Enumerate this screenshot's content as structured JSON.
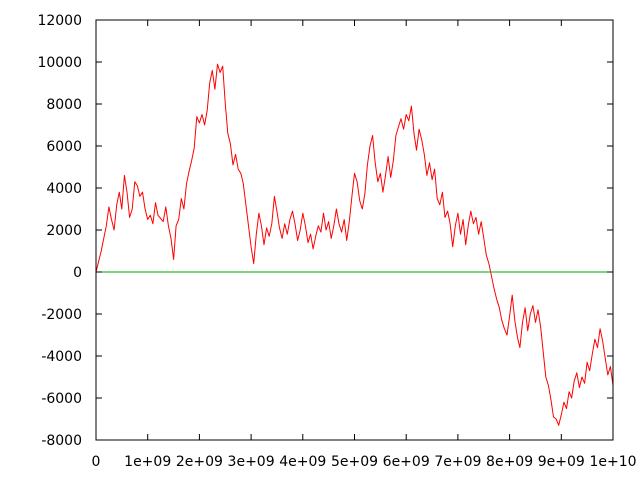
{
  "chart_data": {
    "type": "line",
    "title": "",
    "xlabel": "",
    "ylabel": "",
    "xlim": [
      0,
      10000000000
    ],
    "ylim": [
      -8000,
      12000
    ],
    "x_ticks": [
      {
        "value": 0,
        "label": "0"
      },
      {
        "value": 1000000000,
        "label": "1e+09"
      },
      {
        "value": 2000000000,
        "label": "2e+09"
      },
      {
        "value": 3000000000,
        "label": "3e+09"
      },
      {
        "value": 4000000000,
        "label": "4e+09"
      },
      {
        "value": 5000000000,
        "label": "5e+09"
      },
      {
        "value": 6000000000,
        "label": "6e+09"
      },
      {
        "value": 7000000000,
        "label": "7e+09"
      },
      {
        "value": 8000000000,
        "label": "8e+09"
      },
      {
        "value": 9000000000,
        "label": "9e+09"
      },
      {
        "value": 10000000000,
        "label": "1e+10"
      }
    ],
    "y_ticks": [
      {
        "value": 12000,
        "label": "12000"
      },
      {
        "value": 10000,
        "label": "10000"
      },
      {
        "value": 8000,
        "label": "8000"
      },
      {
        "value": 6000,
        "label": "6000"
      },
      {
        "value": 4000,
        "label": "4000"
      },
      {
        "value": 2000,
        "label": "2000"
      },
      {
        "value": 0,
        "label": "0"
      },
      {
        "value": -2000,
        "label": "-2000"
      },
      {
        "value": -4000,
        "label": "-4000"
      },
      {
        "value": -6000,
        "label": "-6000"
      },
      {
        "value": -8000,
        "label": "-8000"
      }
    ],
    "grid": false,
    "legend": "none",
    "series": [
      {
        "color": "#ff0000",
        "points": [
          [
            0,
            0
          ],
          [
            50000000,
            500
          ],
          [
            100000000,
            1000
          ],
          [
            200000000,
            2200
          ],
          [
            250000000,
            3100
          ],
          [
            300000000,
            2500
          ],
          [
            350000000,
            2000
          ],
          [
            400000000,
            3200
          ],
          [
            450000000,
            3800
          ],
          [
            500000000,
            3000
          ],
          [
            550000000,
            4600
          ],
          [
            600000000,
            3800
          ],
          [
            650000000,
            2600
          ],
          [
            700000000,
            3000
          ],
          [
            750000000,
            4300
          ],
          [
            800000000,
            4100
          ],
          [
            850000000,
            3600
          ],
          [
            900000000,
            3800
          ],
          [
            950000000,
            3000
          ],
          [
            1000000000,
            2500
          ],
          [
            1050000000,
            2700
          ],
          [
            1100000000,
            2300
          ],
          [
            1150000000,
            3300
          ],
          [
            1200000000,
            2700
          ],
          [
            1300000000,
            2400
          ],
          [
            1350000000,
            3100
          ],
          [
            1400000000,
            2200
          ],
          [
            1450000000,
            1600
          ],
          [
            1500000000,
            600
          ],
          [
            1550000000,
            2200
          ],
          [
            1600000000,
            2500
          ],
          [
            1650000000,
            3500
          ],
          [
            1700000000,
            3000
          ],
          [
            1750000000,
            4200
          ],
          [
            1800000000,
            4800
          ],
          [
            1850000000,
            5300
          ],
          [
            1900000000,
            5900
          ],
          [
            1950000000,
            7400
          ],
          [
            2000000000,
            7100
          ],
          [
            2050000000,
            7500
          ],
          [
            2100000000,
            7000
          ],
          [
            2150000000,
            7700
          ],
          [
            2200000000,
            9000
          ],
          [
            2250000000,
            9600
          ],
          [
            2300000000,
            8700
          ],
          [
            2350000000,
            9900
          ],
          [
            2400000000,
            9500
          ],
          [
            2450000000,
            9800
          ],
          [
            2500000000,
            8000
          ],
          [
            2550000000,
            6600
          ],
          [
            2600000000,
            6100
          ],
          [
            2650000000,
            5100
          ],
          [
            2700000000,
            5600
          ],
          [
            2750000000,
            4900
          ],
          [
            2800000000,
            4700
          ],
          [
            2850000000,
            4200
          ],
          [
            2900000000,
            3200
          ],
          [
            2950000000,
            2200
          ],
          [
            3000000000,
            1200
          ],
          [
            3050000000,
            400
          ],
          [
            3100000000,
            1800
          ],
          [
            3150000000,
            2800
          ],
          [
            3200000000,
            2200
          ],
          [
            3250000000,
            1300
          ],
          [
            3300000000,
            2100
          ],
          [
            3350000000,
            1700
          ],
          [
            3400000000,
            2300
          ],
          [
            3450000000,
            3600
          ],
          [
            3500000000,
            2900
          ],
          [
            3550000000,
            2100
          ],
          [
            3600000000,
            1600
          ],
          [
            3650000000,
            2300
          ],
          [
            3700000000,
            1800
          ],
          [
            3750000000,
            2500
          ],
          [
            3800000000,
            2900
          ],
          [
            3850000000,
            2300
          ],
          [
            3900000000,
            1500
          ],
          [
            3950000000,
            2000
          ],
          [
            4000000000,
            2800
          ],
          [
            4050000000,
            2200
          ],
          [
            4100000000,
            1400
          ],
          [
            4150000000,
            1800
          ],
          [
            4200000000,
            1100
          ],
          [
            4250000000,
            1700
          ],
          [
            4300000000,
            2200
          ],
          [
            4350000000,
            1900
          ],
          [
            4400000000,
            2800
          ],
          [
            4450000000,
            2000
          ],
          [
            4500000000,
            2400
          ],
          [
            4550000000,
            1600
          ],
          [
            4600000000,
            2200
          ],
          [
            4650000000,
            3000
          ],
          [
            4700000000,
            2300
          ],
          [
            4750000000,
            1900
          ],
          [
            4800000000,
            2500
          ],
          [
            4850000000,
            1500
          ],
          [
            4900000000,
            2400
          ],
          [
            4950000000,
            3600
          ],
          [
            5000000000,
            4700
          ],
          [
            5050000000,
            4300
          ],
          [
            5100000000,
            3400
          ],
          [
            5150000000,
            3000
          ],
          [
            5200000000,
            3700
          ],
          [
            5250000000,
            5100
          ],
          [
            5300000000,
            6000
          ],
          [
            5350000000,
            6500
          ],
          [
            5400000000,
            5200
          ],
          [
            5450000000,
            4300
          ],
          [
            5500000000,
            4700
          ],
          [
            5550000000,
            3800
          ],
          [
            5600000000,
            4600
          ],
          [
            5650000000,
            5500
          ],
          [
            5700000000,
            4500
          ],
          [
            5750000000,
            5300
          ],
          [
            5800000000,
            6500
          ],
          [
            5850000000,
            6900
          ],
          [
            5900000000,
            7300
          ],
          [
            5950000000,
            6800
          ],
          [
            6000000000,
            7500
          ],
          [
            6050000000,
            7200
          ],
          [
            6100000000,
            7900
          ],
          [
            6150000000,
            6600
          ],
          [
            6200000000,
            5800
          ],
          [
            6250000000,
            6800
          ],
          [
            6300000000,
            6300
          ],
          [
            6350000000,
            5600
          ],
          [
            6400000000,
            4600
          ],
          [
            6450000000,
            5200
          ],
          [
            6500000000,
            4400
          ],
          [
            6550000000,
            4900
          ],
          [
            6600000000,
            3500
          ],
          [
            6650000000,
            3200
          ],
          [
            6700000000,
            3800
          ],
          [
            6750000000,
            2600
          ],
          [
            6800000000,
            2900
          ],
          [
            6850000000,
            2300
          ],
          [
            6900000000,
            1200
          ],
          [
            6950000000,
            2200
          ],
          [
            7000000000,
            2800
          ],
          [
            7050000000,
            1800
          ],
          [
            7100000000,
            2500
          ],
          [
            7150000000,
            1300
          ],
          [
            7200000000,
            2200
          ],
          [
            7250000000,
            2900
          ],
          [
            7300000000,
            2300
          ],
          [
            7350000000,
            2600
          ],
          [
            7400000000,
            1800
          ],
          [
            7450000000,
            2400
          ],
          [
            7500000000,
            1600
          ],
          [
            7550000000,
            800
          ],
          [
            7600000000,
            400
          ],
          [
            7650000000,
            -200
          ],
          [
            7700000000,
            -800
          ],
          [
            7750000000,
            -1300
          ],
          [
            7800000000,
            -1700
          ],
          [
            7850000000,
            -2300
          ],
          [
            7900000000,
            -2700
          ],
          [
            7950000000,
            -3000
          ],
          [
            8000000000,
            -2100
          ],
          [
            8050000000,
            -1100
          ],
          [
            8100000000,
            -2300
          ],
          [
            8150000000,
            -3100
          ],
          [
            8200000000,
            -3600
          ],
          [
            8250000000,
            -2400
          ],
          [
            8300000000,
            -1700
          ],
          [
            8350000000,
            -2800
          ],
          [
            8400000000,
            -2000
          ],
          [
            8450000000,
            -1600
          ],
          [
            8500000000,
            -2400
          ],
          [
            8550000000,
            -1800
          ],
          [
            8600000000,
            -2600
          ],
          [
            8650000000,
            -3800
          ],
          [
            8700000000,
            -5000
          ],
          [
            8750000000,
            -5400
          ],
          [
            8800000000,
            -6100
          ],
          [
            8850000000,
            -6900
          ],
          [
            8900000000,
            -7000
          ],
          [
            8950000000,
            -7300
          ],
          [
            9000000000,
            -6800
          ],
          [
            9050000000,
            -6200
          ],
          [
            9100000000,
            -6500
          ],
          [
            9150000000,
            -5700
          ],
          [
            9200000000,
            -6000
          ],
          [
            9250000000,
            -5200
          ],
          [
            9300000000,
            -4800
          ],
          [
            9350000000,
            -5500
          ],
          [
            9400000000,
            -5000
          ],
          [
            9450000000,
            -5300
          ],
          [
            9500000000,
            -4300
          ],
          [
            9550000000,
            -4700
          ],
          [
            9600000000,
            -3900
          ],
          [
            9650000000,
            -3200
          ],
          [
            9700000000,
            -3600
          ],
          [
            9750000000,
            -2700
          ],
          [
            9800000000,
            -3300
          ],
          [
            9850000000,
            -4100
          ],
          [
            9900000000,
            -4900
          ],
          [
            9950000000,
            -4500
          ],
          [
            10000000000,
            -5400
          ]
        ]
      },
      {
        "color": "#00aa00",
        "points": [
          [
            0,
            0
          ],
          [
            10000000000,
            0
          ]
        ]
      }
    ]
  }
}
